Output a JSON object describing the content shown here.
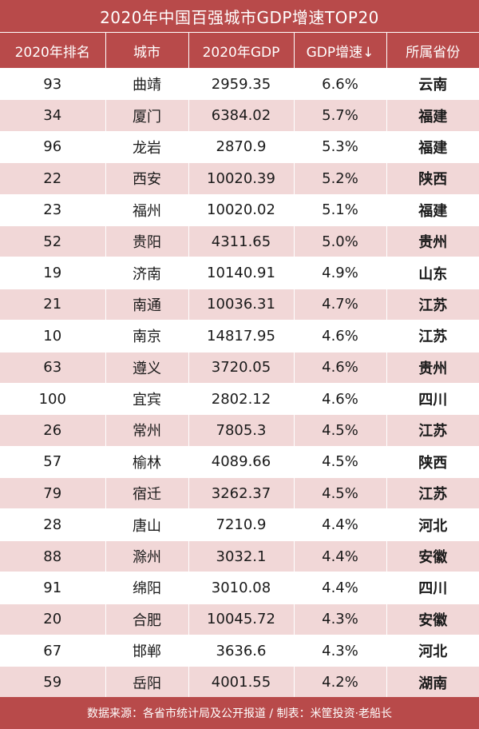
{
  "title": "2020年中国百强城市GDP增速TOP20",
  "headers": {
    "rank": "2020年排名",
    "city": "城市",
    "gdp": "2020年GDP",
    "growth": "GDP增速↓",
    "province": "所属省份"
  },
  "rows": [
    {
      "rank": "93",
      "city": "曲靖",
      "gdp": "2959.35",
      "growth": "6.6%",
      "province": "云南"
    },
    {
      "rank": "34",
      "city": "厦门",
      "gdp": "6384.02",
      "growth": "5.7%",
      "province": "福建"
    },
    {
      "rank": "96",
      "city": "龙岩",
      "gdp": "2870.9",
      "growth": "5.3%",
      "province": "福建"
    },
    {
      "rank": "22",
      "city": "西安",
      "gdp": "10020.39",
      "growth": "5.2%",
      "province": "陕西"
    },
    {
      "rank": "23",
      "city": "福州",
      "gdp": "10020.02",
      "growth": "5.1%",
      "province": "福建"
    },
    {
      "rank": "52",
      "city": "贵阳",
      "gdp": "4311.65",
      "growth": "5.0%",
      "province": "贵州"
    },
    {
      "rank": "19",
      "city": "济南",
      "gdp": "10140.91",
      "growth": "4.9%",
      "province": "山东"
    },
    {
      "rank": "21",
      "city": "南通",
      "gdp": "10036.31",
      "growth": "4.7%",
      "province": "江苏"
    },
    {
      "rank": "10",
      "city": "南京",
      "gdp": "14817.95",
      "growth": "4.6%",
      "province": "江苏"
    },
    {
      "rank": "63",
      "city": "遵义",
      "gdp": "3720.05",
      "growth": "4.6%",
      "province": "贵州"
    },
    {
      "rank": "100",
      "city": "宜宾",
      "gdp": "2802.12",
      "growth": "4.6%",
      "province": "四川"
    },
    {
      "rank": "26",
      "city": "常州",
      "gdp": "7805.3",
      "growth": "4.5%",
      "province": "江苏"
    },
    {
      "rank": "57",
      "city": "榆林",
      "gdp": "4089.66",
      "growth": "4.5%",
      "province": "陕西"
    },
    {
      "rank": "79",
      "city": "宿迁",
      "gdp": "3262.37",
      "growth": "4.5%",
      "province": "江苏"
    },
    {
      "rank": "28",
      "city": "唐山",
      "gdp": "7210.9",
      "growth": "4.4%",
      "province": "河北"
    },
    {
      "rank": "88",
      "city": "滁州",
      "gdp": "3032.1",
      "growth": "4.4%",
      "province": "安徽"
    },
    {
      "rank": "91",
      "city": "绵阳",
      "gdp": "3010.08",
      "growth": "4.4%",
      "province": "四川"
    },
    {
      "rank": "20",
      "city": "合肥",
      "gdp": "10045.72",
      "growth": "4.3%",
      "province": "安徽"
    },
    {
      "rank": "67",
      "city": "邯郸",
      "gdp": "3636.6",
      "growth": "4.3%",
      "province": "河北"
    },
    {
      "rank": "59",
      "city": "岳阳",
      "gdp": "4001.55",
      "growth": "4.2%",
      "province": "湖南"
    }
  ],
  "footer": "数据来源：各省市统计局及公开报道 / 制表：米筐投资·老船长",
  "colors": {
    "accent": "#b84a4a",
    "stripe": "#f1d7d7"
  }
}
